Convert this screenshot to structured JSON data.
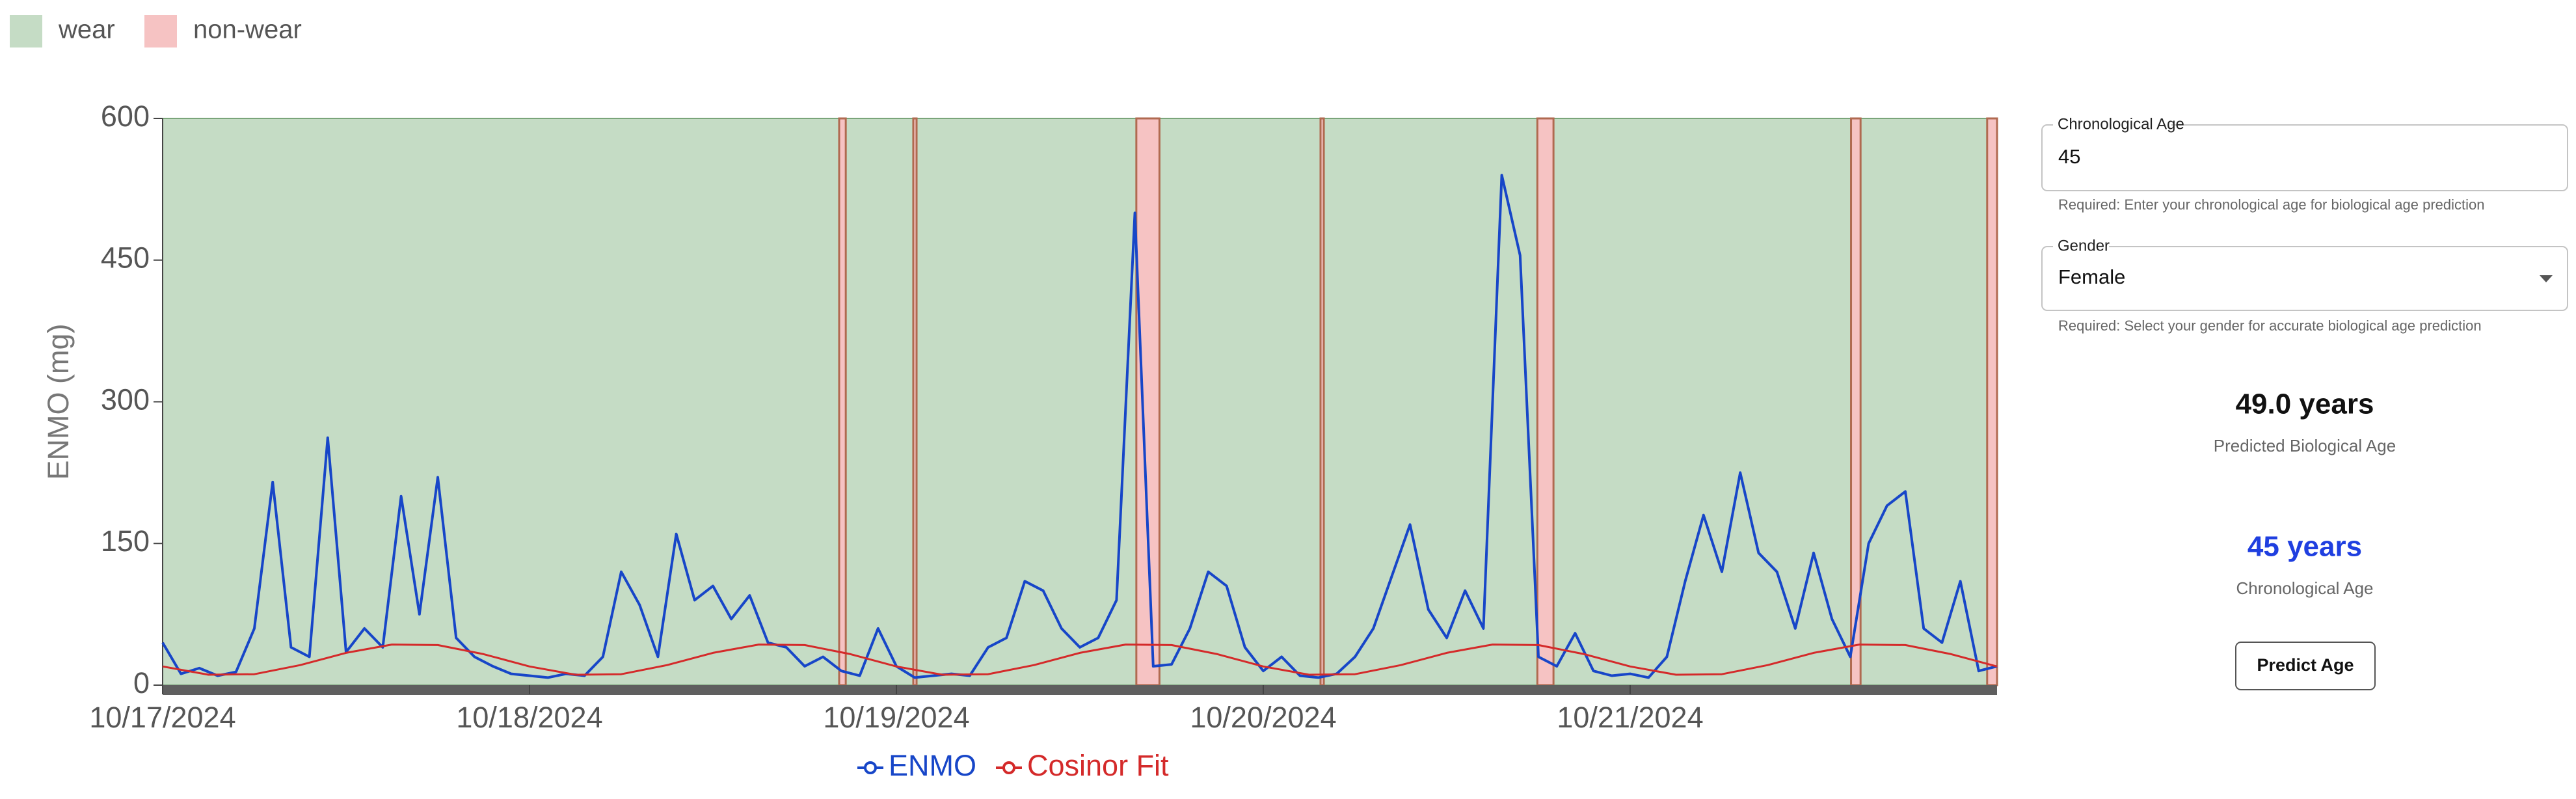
{
  "chart_data": {
    "type": "line",
    "ylabel": "ENMO (mg)",
    "ylim": [
      0,
      600
    ],
    "yticks": [
      0,
      150,
      300,
      450,
      600
    ],
    "xlim": [
      0,
      5
    ],
    "xticks": [
      {
        "value": 0,
        "label": "10/17/2024"
      },
      {
        "value": 1,
        "label": "10/18/2024"
      },
      {
        "value": 2,
        "label": "10/19/2024"
      },
      {
        "value": 3,
        "label": "10/20/2024"
      },
      {
        "value": 4,
        "label": "10/21/2024"
      }
    ],
    "regions": {
      "wear": {
        "label": "wear",
        "color": "#c5dcc5"
      },
      "non_wear": {
        "label": "non-wear",
        "color": "#f6c3c3",
        "intervals": [
          [
            1.844,
            1.862
          ],
          [
            2.046,
            2.055
          ],
          [
            2.654,
            2.717
          ],
          [
            3.156,
            3.165
          ],
          [
            3.747,
            3.791
          ],
          [
            4.602,
            4.628
          ],
          [
            4.973,
            5.0
          ]
        ]
      }
    },
    "series": [
      {
        "name": "ENMO",
        "color": "#1746c8",
        "x": [
          0,
          0.05,
          0.1,
          0.15,
          0.2,
          0.25,
          0.3,
          0.35,
          0.4,
          0.45,
          0.5,
          0.55,
          0.6,
          0.65,
          0.7,
          0.75,
          0.8,
          0.85,
          0.9,
          0.95,
          1,
          1.05,
          1.1,
          1.15,
          1.2,
          1.25,
          1.3,
          1.35,
          1.4,
          1.45,
          1.5,
          1.55,
          1.6,
          1.65,
          1.7,
          1.75,
          1.8,
          1.85,
          1.9,
          1.95,
          2,
          2.05,
          2.1,
          2.15,
          2.2,
          2.25,
          2.3,
          2.35,
          2.4,
          2.45,
          2.5,
          2.55,
          2.6,
          2.65,
          2.7,
          2.75,
          2.8,
          2.85,
          2.9,
          2.95,
          3,
          3.05,
          3.1,
          3.15,
          3.2,
          3.25,
          3.3,
          3.35,
          3.4,
          3.45,
          3.5,
          3.55,
          3.6,
          3.65,
          3.7,
          3.75,
          3.8,
          3.85,
          3.9,
          3.95,
          4,
          4.05,
          4.1,
          4.15,
          4.2,
          4.25,
          4.3,
          4.35,
          4.4,
          4.45,
          4.5,
          4.55,
          4.6,
          4.65,
          4.7,
          4.75,
          4.8,
          4.85,
          4.9,
          4.95,
          5
        ],
        "values": [
          45,
          12,
          18,
          10,
          14,
          60,
          215,
          40,
          30,
          262,
          35,
          60,
          40,
          200,
          75,
          220,
          50,
          30,
          20,
          12,
          10,
          8,
          12,
          10,
          30,
          120,
          85,
          30,
          160,
          90,
          105,
          70,
          95,
          45,
          40,
          20,
          30,
          15,
          10,
          60,
          20,
          8,
          10,
          12,
          10,
          40,
          50,
          110,
          100,
          60,
          40,
          50,
          90,
          500,
          20,
          22,
          60,
          120,
          105,
          40,
          15,
          30,
          10,
          8,
          12,
          30,
          60,
          115,
          170,
          80,
          50,
          100,
          60,
          540,
          455,
          30,
          20,
          55,
          15,
          10,
          12,
          8,
          30,
          110,
          180,
          120,
          225,
          140,
          120,
          60,
          140,
          70,
          30,
          150,
          190,
          205,
          60,
          45,
          110,
          15,
          20
        ]
      },
      {
        "name": "Cosinor Fit",
        "color": "#d42a2a",
        "x": [
          0,
          0.125,
          0.25,
          0.375,
          0.5,
          0.625,
          0.75,
          0.875,
          1,
          1.125,
          1.25,
          1.375,
          1.5,
          1.625,
          1.75,
          1.875,
          2,
          2.125,
          2.25,
          2.375,
          2.5,
          2.625,
          2.75,
          2.875,
          3,
          3.125,
          3.25,
          3.375,
          3.5,
          3.625,
          3.75,
          3.875,
          4,
          4.125,
          4.25,
          4.375,
          4.5,
          4.625,
          4.75,
          4.875,
          5
        ],
        "values": [
          19.8,
          11.0,
          11.6,
          21.2,
          34.2,
          43.0,
          42.4,
          32.8,
          19.8,
          11.0,
          11.6,
          21.2,
          34.2,
          43.0,
          42.4,
          32.8,
          19.8,
          11.0,
          11.6,
          21.2,
          34.2,
          43.0,
          42.4,
          32.8,
          19.8,
          11.0,
          11.6,
          21.2,
          34.2,
          43.0,
          42.4,
          32.8,
          19.8,
          11.0,
          11.6,
          21.2,
          34.2,
          43.0,
          42.4,
          32.8,
          19.8
        ]
      }
    ]
  },
  "form": {
    "age_field": {
      "label": "Chronological Age",
      "value": "45",
      "helper": "Required: Enter your chronological age for biological age prediction"
    },
    "gender_field": {
      "label": "Gender",
      "value": "Female",
      "helper": "Required: Select your gender for accurate biological age prediction"
    },
    "results": {
      "predicted": {
        "value": "49.0 years",
        "label": "Predicted Biological Age"
      },
      "chronological": {
        "value": "45 years",
        "label": "Chronological Age"
      }
    },
    "button": "Predict Age"
  }
}
